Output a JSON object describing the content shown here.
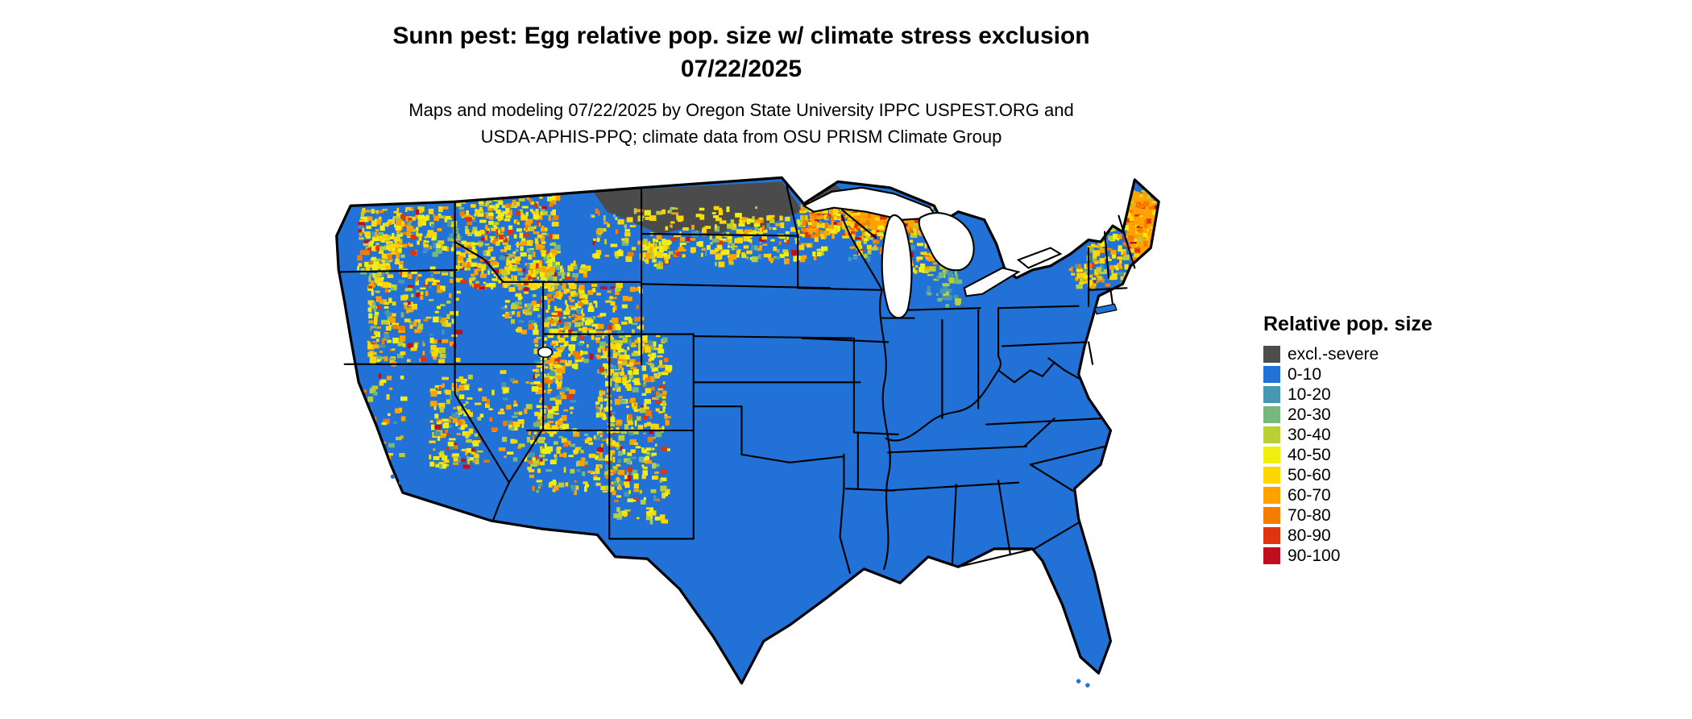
{
  "header": {
    "title_line1": "Sunn pest: Egg relative pop. size w/ climate stress exclusion",
    "title_line2": "07/22/2025",
    "subtitle_line1": "Maps and modeling 07/22/2025 by Oregon State University IPPC USPEST.ORG and",
    "subtitle_line2": "USDA-APHIS-PPQ; climate data from OSU PRISM Climate Group"
  },
  "legend": {
    "title": "Relative pop. size",
    "items": [
      {
        "label": "excl.-severe",
        "color": "#4d4d4d"
      },
      {
        "label": "0-10",
        "color": "#2171d6"
      },
      {
        "label": "10-20",
        "color": "#4697b1"
      },
      {
        "label": "20-30",
        "color": "#77b87f"
      },
      {
        "label": "30-40",
        "color": "#b9cf35"
      },
      {
        "label": "40-50",
        "color": "#efef11"
      },
      {
        "label": "50-60",
        "color": "#ffd700"
      },
      {
        "label": "60-70",
        "color": "#ffa200"
      },
      {
        "label": "70-80",
        "color": "#f47c00"
      },
      {
        "label": "80-90",
        "color": "#e0340e"
      },
      {
        "label": "90-100",
        "color": "#c00d20"
      }
    ]
  },
  "map": {
    "base_color": "#2171d6",
    "exclusion_color": "#4b4b4b",
    "border_color": "#000000",
    "water_color": "#ffffff"
  }
}
